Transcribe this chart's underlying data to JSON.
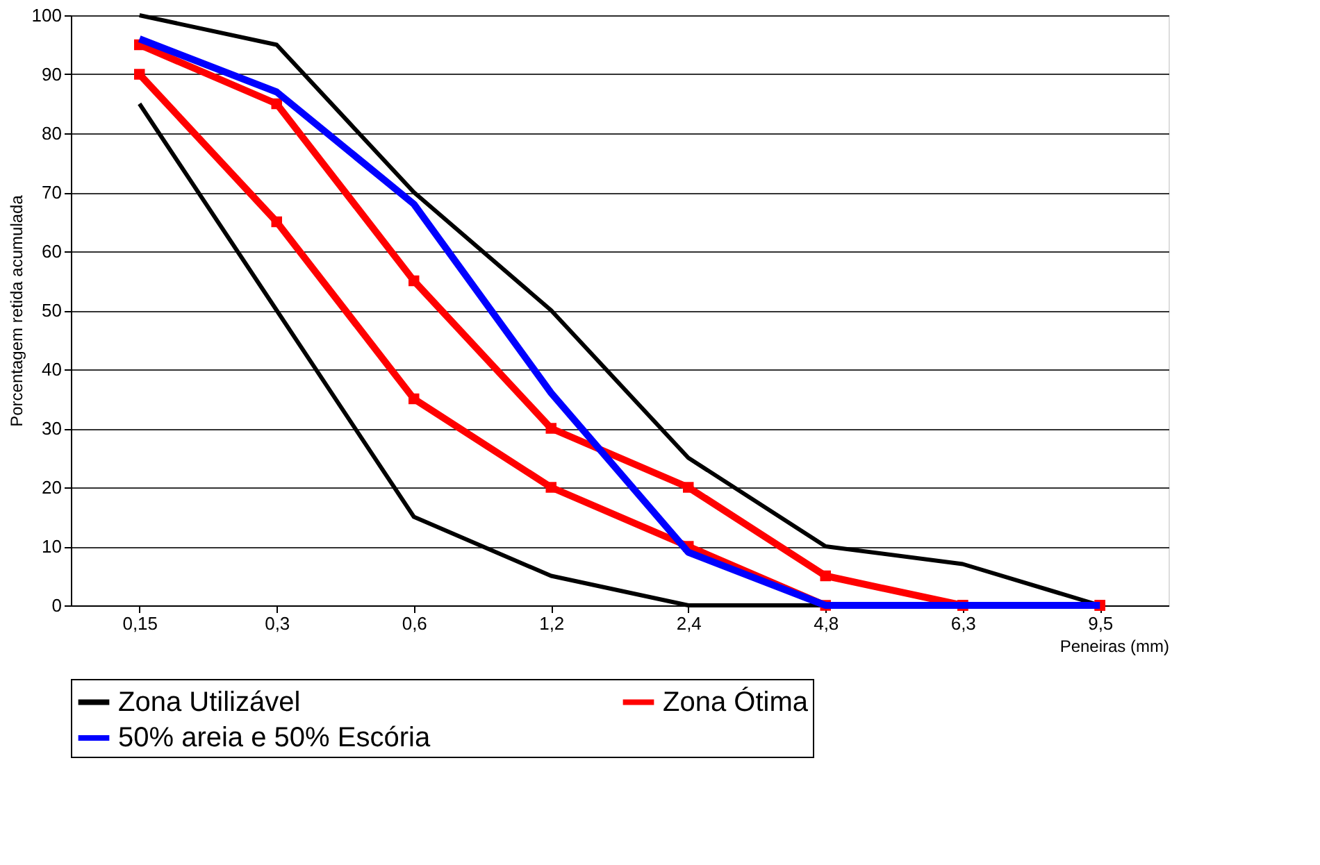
{
  "chart_data": {
    "type": "line",
    "xlabel": "Peneiras (mm)",
    "ylabel": "Porcentagem retida acumulada",
    "categories": [
      "0,15",
      "0,3",
      "0,6",
      "1,2",
      "2,4",
      "4,8",
      "6,3",
      "9,5"
    ],
    "series": [
      {
        "name": "Zona Utilizável",
        "color": "#000000",
        "marker": "none",
        "values": [
          100,
          95,
          70,
          50,
          25,
          10,
          7,
          0
        ]
      },
      {
        "color": "#000000",
        "marker": "none",
        "values": [
          85,
          50,
          15,
          5,
          0,
          0,
          0,
          0
        ]
      },
      {
        "name": "Zona Ótima",
        "color": "#ff0000",
        "marker": "square",
        "values": [
          95,
          85,
          55,
          30,
          20,
          5,
          0,
          0
        ]
      },
      {
        "color": "#ff0000",
        "marker": "square",
        "values": [
          90,
          65,
          35,
          20,
          10,
          0,
          0,
          0
        ]
      },
      {
        "name": "50% areia e 50% Escória",
        "color": "#0000ff",
        "marker": "none",
        "values": [
          96,
          87,
          68,
          36,
          9,
          0,
          0,
          0
        ]
      }
    ],
    "ylim": [
      0,
      100
    ],
    "yticks": [
      0,
      10,
      20,
      30,
      40,
      50,
      60,
      70,
      80,
      90,
      100
    ],
    "grid": "y",
    "legend": "bottom"
  }
}
